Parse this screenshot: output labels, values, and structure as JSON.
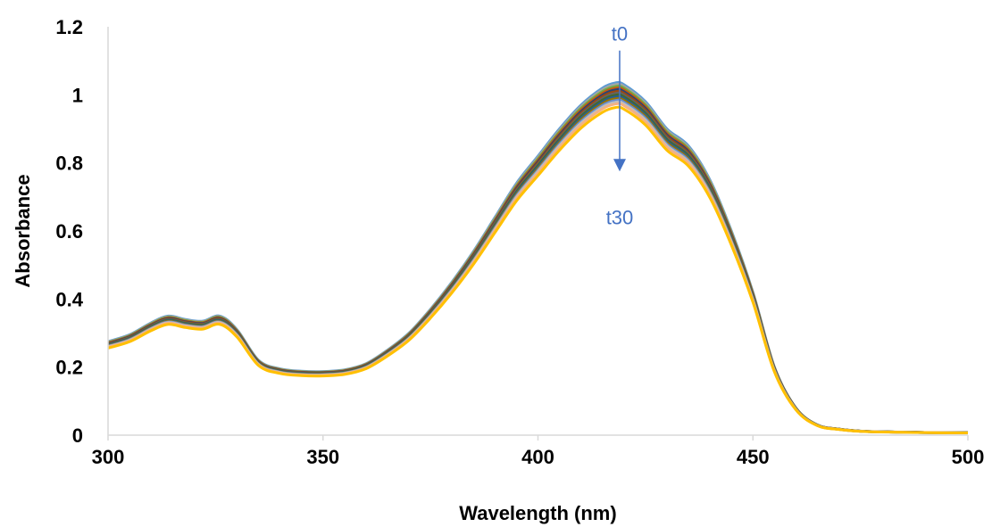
{
  "chart_data": {
    "type": "line",
    "title": "",
    "xlabel": "Wavelength (nm)",
    "ylabel": "Absorbance",
    "xlim": [
      300,
      500
    ],
    "ylim": [
      0,
      1.2
    ],
    "x_ticks": [
      300,
      350,
      400,
      450,
      500
    ],
    "x_tick_labels": [
      "300",
      "350",
      "400",
      "450",
      "500"
    ],
    "y_ticks": [
      0,
      0.2,
      0.4,
      0.6,
      0.8,
      1.0,
      1.2
    ],
    "y_tick_labels": [
      "0",
      "0.2",
      "0.4",
      "0.6",
      "0.8",
      "1",
      "1.2"
    ],
    "grid": false,
    "legend": "none",
    "base_spectrum": {
      "x": [
        300,
        305,
        310,
        314,
        318,
        322,
        326,
        330,
        335,
        340,
        345,
        350,
        355,
        360,
        365,
        370,
        375,
        380,
        385,
        390,
        395,
        400,
        405,
        410,
        415,
        418,
        420,
        425,
        430,
        435,
        440,
        445,
        450,
        455,
        460,
        465,
        470,
        475,
        480,
        490,
        500
      ],
      "y": [
        0.275,
        0.295,
        0.33,
        0.35,
        0.34,
        0.335,
        0.35,
        0.31,
        0.22,
        0.195,
        0.188,
        0.187,
        0.192,
        0.21,
        0.25,
        0.3,
        0.37,
        0.45,
        0.54,
        0.64,
        0.74,
        0.82,
        0.9,
        0.97,
        1.02,
        1.035,
        1.03,
        0.98,
        0.9,
        0.85,
        0.75,
        0.6,
        0.42,
        0.2,
        0.08,
        0.03,
        0.018,
        0.012,
        0.01,
        0.008,
        0.007
      ]
    },
    "series": [
      {
        "scale": 1.0,
        "color": "#5b9bd5"
      },
      {
        "scale": 0.995,
        "color": "#a5a5a5"
      },
      {
        "scale": 0.99,
        "color": "#70ad47"
      },
      {
        "scale": 0.985,
        "color": "#c55a11"
      },
      {
        "scale": 0.98,
        "color": "#264478"
      },
      {
        "scale": 0.975,
        "color": "#9e480e"
      },
      {
        "scale": 0.97,
        "color": "#636363"
      },
      {
        "scale": 0.965,
        "color": "#43682b"
      },
      {
        "scale": 0.96,
        "color": "#255e91"
      },
      {
        "scale": 0.955,
        "color": "#997300"
      },
      {
        "scale": 0.95,
        "color": "#698ed0"
      },
      {
        "scale": 0.945,
        "color": "#bfbfbf"
      },
      {
        "scale": 0.94,
        "color": "#f4b183"
      },
      {
        "scale": 0.93,
        "color": "#ffc000"
      }
    ],
    "annotations": [
      {
        "text": "t0",
        "x": 419,
        "y": 1.18
      },
      {
        "text": "t30",
        "x": 419,
        "y": 0.64
      }
    ],
    "arrow": {
      "x": 419,
      "y_start": 1.13,
      "y_end": 0.78,
      "color": "#4472c4"
    }
  }
}
